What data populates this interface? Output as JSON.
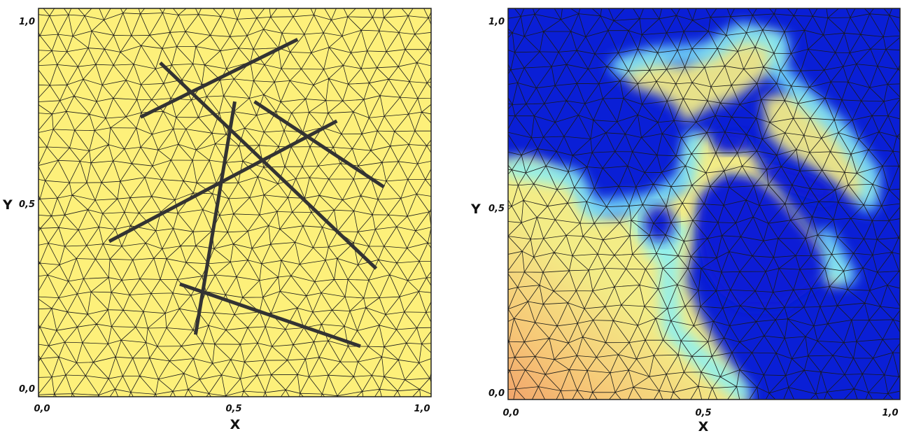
{
  "panels": [
    {
      "id": "left",
      "background": "#fdf07a",
      "x_axis": {
        "label": "X",
        "ticks": [
          "0,0",
          "0,5",
          "1,0"
        ]
      },
      "y_axis": {
        "label": "Y",
        "ticks": [
          "0,0",
          "0,5",
          "1,0"
        ]
      },
      "fractures": [
        [
          [
            0.26,
            0.72
          ],
          [
            0.66,
            0.92
          ]
        ],
        [
          [
            0.31,
            0.86
          ],
          [
            0.86,
            0.33
          ]
        ],
        [
          [
            0.5,
            0.76
          ],
          [
            0.4,
            0.16
          ]
        ],
        [
          [
            0.55,
            0.76
          ],
          [
            0.88,
            0.54
          ]
        ],
        [
          [
            0.18,
            0.4
          ],
          [
            0.76,
            0.71
          ]
        ],
        [
          [
            0.36,
            0.29
          ],
          [
            0.82,
            0.13
          ]
        ]
      ]
    },
    {
      "id": "right",
      "x_axis": {
        "label": "X",
        "ticks": [
          "0,0",
          "0,5",
          "1,0"
        ]
      },
      "y_axis": {
        "label": "Y",
        "ticks": [
          "0,0",
          "0,5",
          "1,0"
        ]
      },
      "colors": {
        "low": "#0a1fd6",
        "mid": "#7ff0ff",
        "high": "#f2ea85",
        "peak": "#ee9a6a"
      }
    }
  ]
}
